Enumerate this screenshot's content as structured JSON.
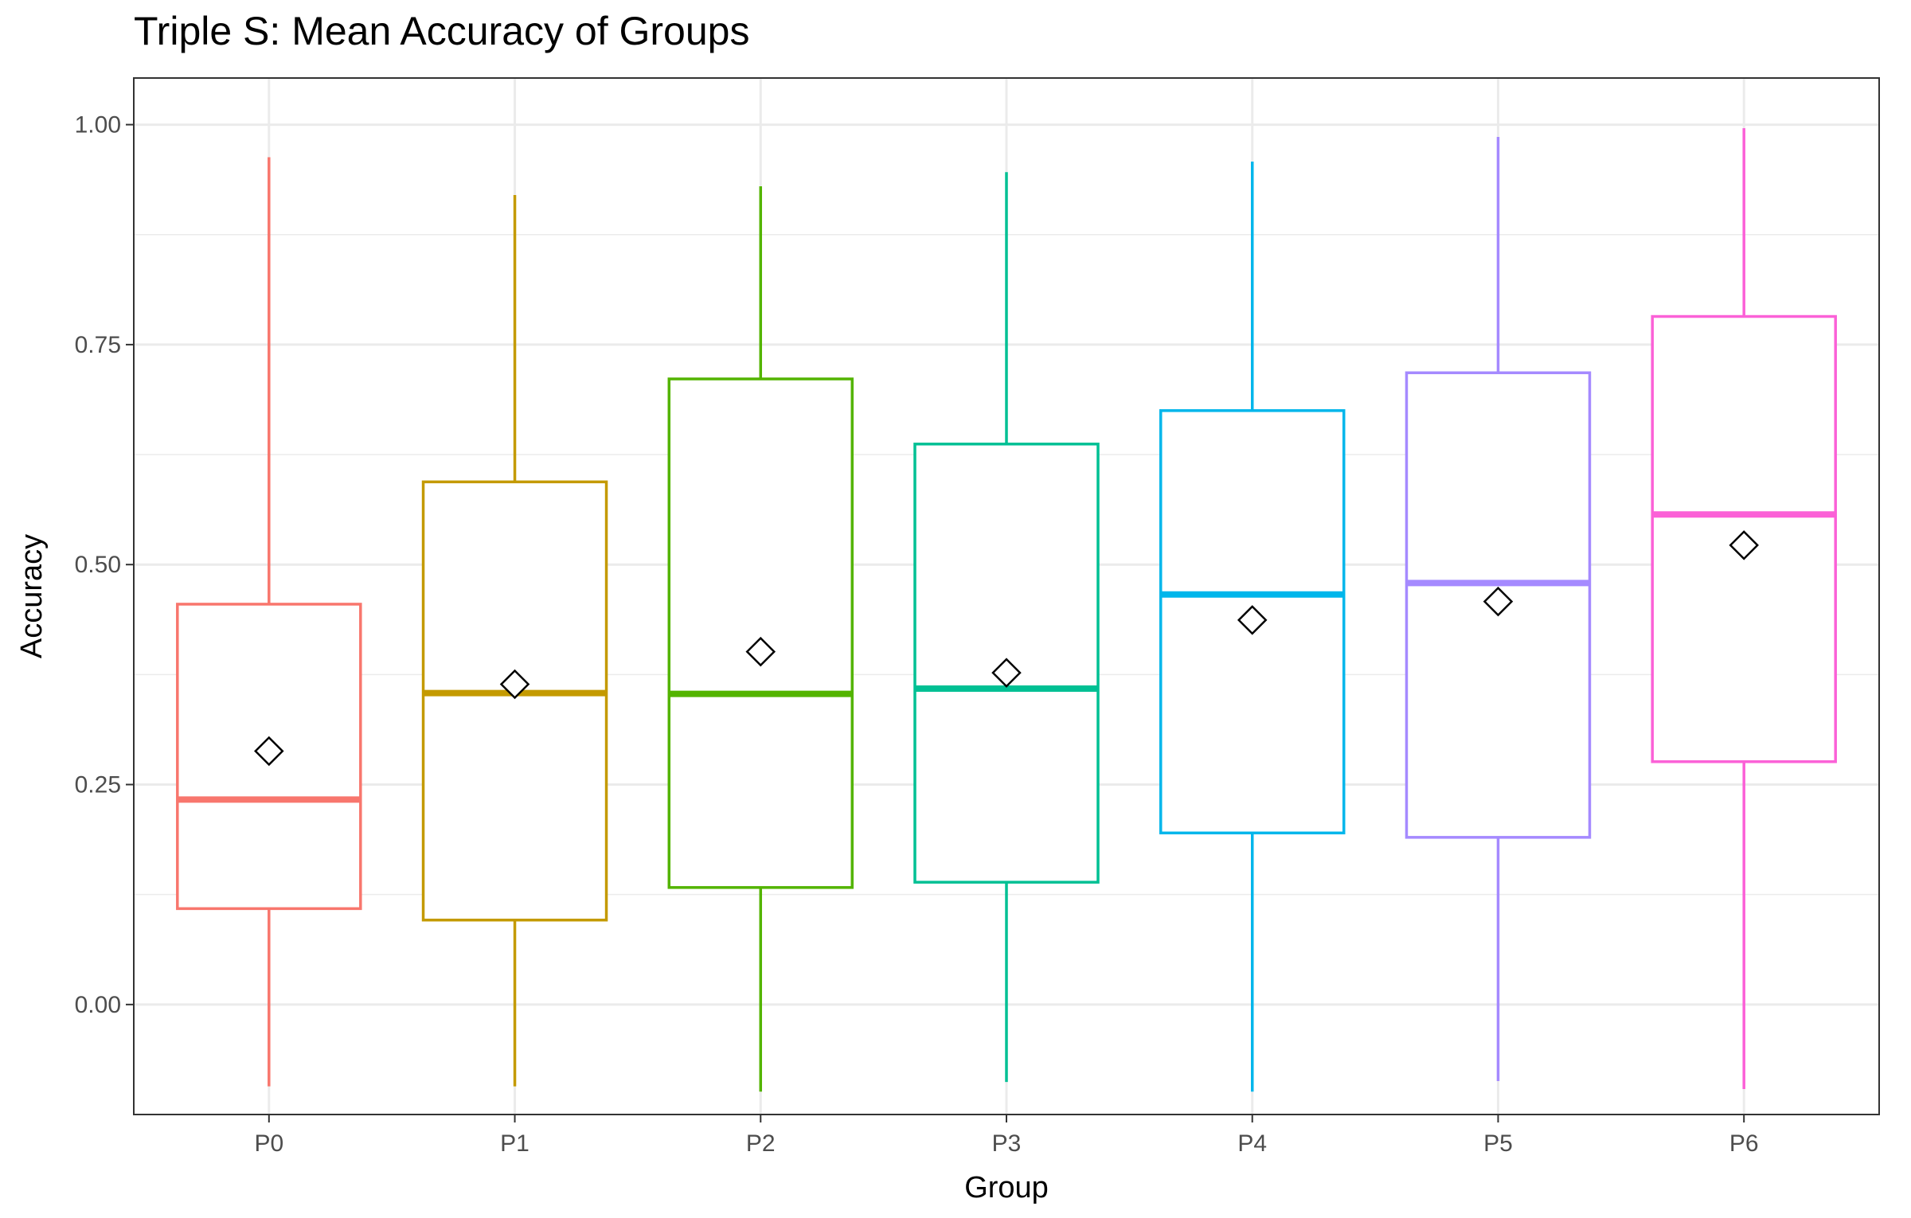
{
  "chart_data": {
    "type": "boxplot",
    "title": "Triple S: Mean Accuracy of Groups",
    "xlabel": "Group",
    "ylabel": "Accuracy",
    "ylim": [
      -0.125,
      1.053
    ],
    "y_ticks": [
      0.0,
      0.25,
      0.5,
      0.75,
      1.0
    ],
    "y_tick_labels": [
      "0.00",
      "0.25",
      "0.50",
      "0.75",
      "1.00"
    ],
    "grid": true,
    "legend": "none",
    "categories": [
      "P0",
      "P1",
      "P2",
      "P3",
      "P4",
      "P5",
      "P6"
    ],
    "series": [
      {
        "name": "P0",
        "color": "#F8766D",
        "whisker_low": -0.093,
        "q1": 0.109,
        "median": 0.233,
        "q3": 0.455,
        "whisker_high": 0.963,
        "mean": 0.288
      },
      {
        "name": "P1",
        "color": "#C49A00",
        "whisker_low": -0.093,
        "q1": 0.096,
        "median": 0.354,
        "q3": 0.594,
        "whisker_high": 0.92,
        "mean": 0.364
      },
      {
        "name": "P2",
        "color": "#53B400",
        "whisker_low": -0.099,
        "q1": 0.133,
        "median": 0.353,
        "q3": 0.711,
        "whisker_high": 0.93,
        "mean": 0.401
      },
      {
        "name": "P3",
        "color": "#00C094",
        "whisker_low": -0.088,
        "q1": 0.139,
        "median": 0.359,
        "q3": 0.637,
        "whisker_high": 0.946,
        "mean": 0.377
      },
      {
        "name": "P4",
        "color": "#00B6EB",
        "whisker_low": -0.099,
        "q1": 0.195,
        "median": 0.466,
        "q3": 0.675,
        "whisker_high": 0.958,
        "mean": 0.437
      },
      {
        "name": "P5",
        "color": "#A58AFF",
        "whisker_low": -0.087,
        "q1": 0.19,
        "median": 0.479,
        "q3": 0.718,
        "whisker_high": 0.986,
        "mean": 0.458
      },
      {
        "name": "P6",
        "color": "#FB61D7",
        "whisker_low": -0.096,
        "q1": 0.276,
        "median": 0.557,
        "q3": 0.782,
        "whisker_high": 0.996,
        "mean": 0.522
      }
    ]
  }
}
